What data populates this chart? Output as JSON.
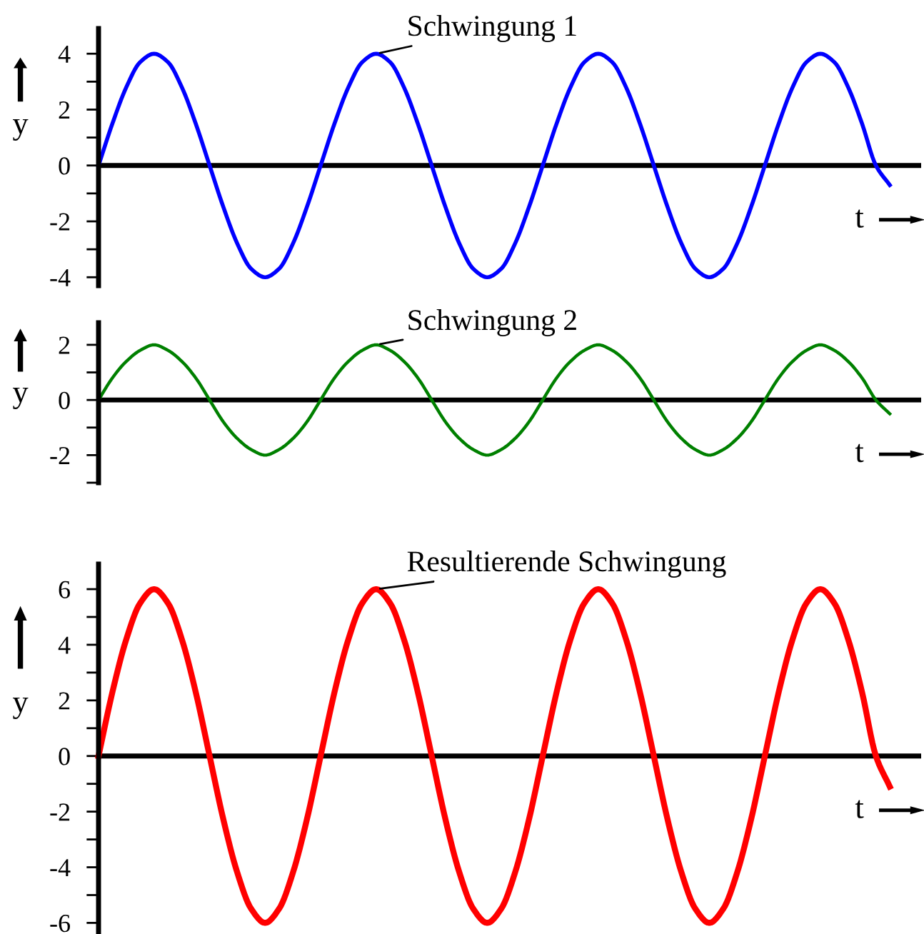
{
  "chart_data": [
    {
      "type": "line",
      "categories": [
        null,
        null,
        null,
        null,
        null,
        null,
        null,
        null,
        null,
        null,
        null,
        null,
        null,
        null,
        null,
        null,
        null,
        null,
        null,
        null,
        null,
        null,
        null,
        null,
        null,
        null,
        null,
        null,
        null,
        null,
        null,
        null,
        null,
        null,
        null,
        null,
        null,
        null,
        null,
        null,
        null,
        null,
        null,
        null,
        null,
        null,
        null,
        null,
        null,
        null,
        null,
        null,
        null,
        null,
        null,
        null,
        null,
        null
      ],
      "series": [
        {
          "color": "#0000ff",
          "values": [
            0,
            1.5,
            2.8,
            3.7,
            4,
            3.7,
            2.8,
            1.5,
            0,
            -1.5,
            -2.8,
            -3.7,
            -4,
            -3.7,
            -2.8,
            -1.5,
            0,
            1.5,
            2.8,
            3.7,
            4,
            3.7,
            2.8,
            1.5,
            0,
            -1.5,
            -2.8,
            -3.7,
            -4,
            -3.7,
            -2.8,
            -1.5,
            0,
            1.5,
            2.8,
            3.7,
            4,
            3.7,
            2.8,
            1.5,
            0,
            -1.5,
            -2.8,
            -3.7,
            -4,
            -3.7,
            -2.8,
            -1.5,
            0,
            1.5,
            2.8,
            3.7,
            4,
            3.7,
            2.8,
            1.5,
            0,
            -0.7
          ]
        }
      ],
      "ylim": [
        -4.3,
        4.9
      ],
      "yticks": [
        {
          "value": -4,
          "label": "-4"
        },
        {
          "value": -3,
          "label": null
        },
        {
          "value": -2,
          "label": "-2"
        },
        {
          "value": -1,
          "label": null
        },
        0,
        {
          "value": 1,
          "label": null
        },
        2,
        {
          "value": 3,
          "label": null
        },
        4
      ],
      "xlabel": "t",
      "ylabel": "y",
      "annotations": [
        "Schwingung 1"
      ],
      "marker": "none",
      "line_style": "solid",
      "ref_lines": [
        {
          "axis": "y",
          "value": 0,
          "color": "#000000"
        }
      ]
    },
    {
      "type": "line",
      "categories": [
        null,
        null,
        null,
        null,
        null,
        null,
        null,
        null,
        null,
        null,
        null,
        null,
        null,
        null,
        null,
        null,
        null,
        null,
        null,
        null,
        null,
        null,
        null,
        null,
        null,
        null,
        null,
        null,
        null,
        null,
        null,
        null,
        null,
        null,
        null,
        null,
        null,
        null,
        null,
        null,
        null,
        null,
        null,
        null,
        null,
        null,
        null,
        null,
        null,
        null,
        null,
        null,
        null,
        null,
        null,
        null,
        null,
        null
      ],
      "series": [
        {
          "color": "#008000",
          "values": [
            0,
            0.8,
            1.4,
            1.8,
            2,
            1.8,
            1.4,
            0.8,
            0,
            -0.8,
            -1.4,
            -1.8,
            -2,
            -1.8,
            -1.4,
            -0.8,
            0,
            0.8,
            1.4,
            1.8,
            2,
            1.8,
            1.4,
            0.8,
            0,
            -0.8,
            -1.4,
            -1.8,
            -2,
            -1.8,
            -1.4,
            -0.8,
            0,
            0.8,
            1.4,
            1.8,
            2,
            1.8,
            1.4,
            0.8,
            0,
            -0.8,
            -1.4,
            -1.8,
            -2,
            -1.8,
            -1.4,
            -0.8,
            0,
            0.8,
            1.4,
            1.8,
            2,
            1.8,
            1.4,
            0.8,
            0,
            -0.5
          ]
        }
      ],
      "ylim": [
        -3,
        2.8
      ],
      "yticks": [
        {
          "value": -3,
          "label": null
        },
        {
          "value": -2,
          "label": "-2"
        },
        {
          "value": -1,
          "label": null
        },
        0,
        {
          "value": 1,
          "label": null
        },
        2
      ],
      "xlabel": "t",
      "ylabel": "y",
      "annotations": [
        "Schwingung 2"
      ],
      "marker": "none",
      "line_style": "solid",
      "ref_lines": [
        {
          "axis": "y",
          "value": 0,
          "color": "#000000"
        }
      ]
    },
    {
      "type": "line",
      "categories": [
        null,
        null,
        null,
        null,
        null,
        null,
        null,
        null,
        null,
        null,
        null,
        null,
        null,
        null,
        null,
        null,
        null,
        null,
        null,
        null,
        null,
        null,
        null,
        null,
        null,
        null,
        null,
        null,
        null,
        null,
        null,
        null,
        null,
        null,
        null,
        null,
        null,
        null,
        null,
        null,
        null,
        null,
        null,
        null,
        null,
        null,
        null,
        null,
        null,
        null,
        null,
        null,
        null,
        null,
        null,
        null,
        null,
        null
      ],
      "series": [
        {
          "color": "#ff0000",
          "values": [
            0,
            2.3,
            4.2,
            5.5,
            6,
            5.5,
            4.2,
            2.3,
            0,
            -2.3,
            -4.2,
            -5.5,
            -6,
            -5.5,
            -4.2,
            -2.3,
            0,
            2.3,
            4.2,
            5.5,
            6,
            5.5,
            4.2,
            2.3,
            0,
            -2.3,
            -4.2,
            -5.5,
            -6,
            -5.5,
            -4.2,
            -2.3,
            0,
            2.3,
            4.2,
            5.5,
            6,
            5.5,
            4.2,
            2.3,
            0,
            -2.3,
            -4.2,
            -5.5,
            -6,
            -5.5,
            -4.2,
            -2.3,
            0,
            2.3,
            4.2,
            5.5,
            6,
            5.5,
            4.2,
            2.3,
            0,
            -1.1
          ]
        }
      ],
      "ylim": [
        -6.4,
        6.9
      ],
      "yticks": [
        {
          "value": -6,
          "label": "-6"
        },
        {
          "value": -5,
          "label": null
        },
        {
          "value": -4,
          "label": "-4"
        },
        {
          "value": -3,
          "label": null
        },
        {
          "value": -2,
          "label": "-2"
        },
        {
          "value": -1,
          "label": null
        },
        0,
        {
          "value": 1,
          "label": null
        },
        2,
        {
          "value": 3,
          "label": null
        },
        4,
        {
          "value": 5,
          "label": null
        },
        6
      ],
      "xlabel": "t",
      "ylabel": "y",
      "annotations": [
        "Resultierende Schwingung"
      ],
      "marker": "none",
      "line_style": "solid",
      "ref_lines": [
        {
          "axis": "y",
          "value": 0,
          "color": "#000000"
        }
      ]
    }
  ]
}
